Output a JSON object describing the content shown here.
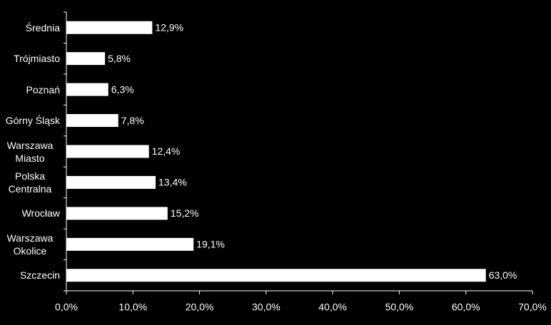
{
  "chart_data": {
    "type": "bar",
    "orientation": "horizontal",
    "categories": [
      "Średnia",
      "Trójmiasto",
      "Poznań",
      "Górny Śląsk",
      "Warszawa Miasto",
      "Polska Centralna",
      "Wrocław",
      "Warszawa Okolice",
      "Szczecin"
    ],
    "values": [
      12.9,
      5.8,
      6.3,
      7.8,
      12.4,
      13.4,
      15.2,
      19.1,
      63.0
    ],
    "value_labels": [
      "12,9%",
      "5,8%",
      "6,3%",
      "7,8%",
      "12,4%",
      "13,4%",
      "15,2%",
      "19,1%",
      "63,0%"
    ],
    "color": "#ffffff",
    "xlim": [
      0,
      70
    ],
    "xticks": [
      {
        "value": 0,
        "label": "0,0%"
      },
      {
        "value": 10,
        "label": "10,0%"
      },
      {
        "value": 20,
        "label": "20,0%"
      },
      {
        "value": 30,
        "label": "30,0%"
      },
      {
        "value": 40,
        "label": "40,0%"
      },
      {
        "value": 50,
        "label": "50,0%"
      },
      {
        "value": 60,
        "label": "60,0%"
      },
      {
        "value": 70,
        "label": "70,0%"
      }
    ],
    "grid": false
  }
}
